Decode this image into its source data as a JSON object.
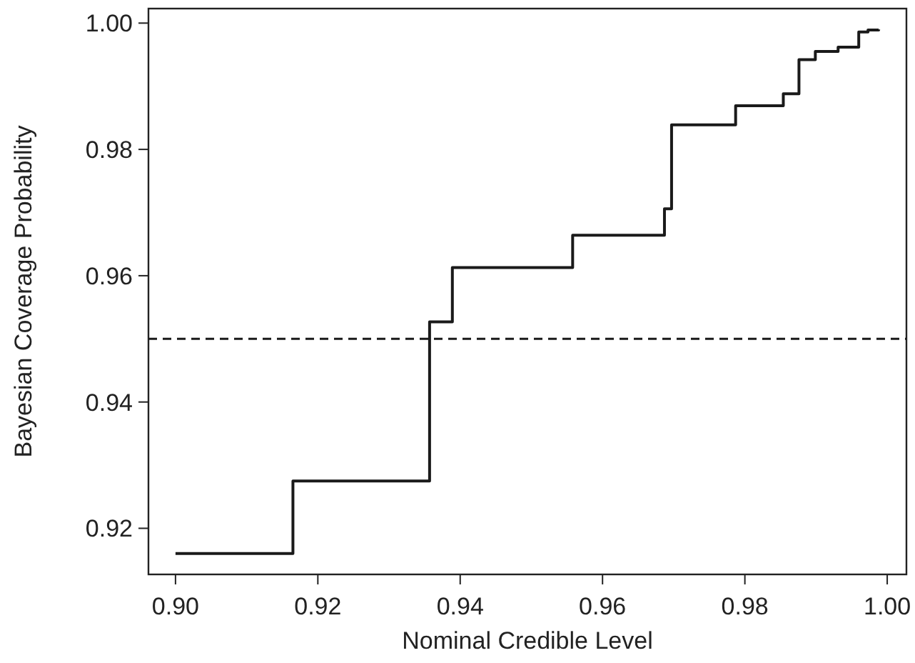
{
  "chart_data": {
    "type": "step",
    "xlabel": "Nominal Credible Level",
    "ylabel": "Bayesian Coverage Probability",
    "x": [
      0.9,
      0.9165,
      0.9357,
      0.9389,
      0.9558,
      0.9687,
      0.9697,
      0.9787,
      0.9854,
      0.9876,
      0.9899,
      0.9931,
      0.996,
      0.9973,
      0.9988
    ],
    "series": [
      {
        "color": "#1a1a1a",
        "values": [
          0.916,
          0.9275,
          0.9527,
          0.9613,
          0.9664,
          0.9706,
          0.9839,
          0.9869,
          0.9888,
          0.9942,
          0.9955,
          0.9962,
          0.9986,
          0.9989,
          0.999
        ]
      }
    ],
    "xlim": [
      0.8962,
      1.0027
    ],
    "ylim": [
      0.9127,
      1.0023
    ],
    "xticks": [
      {
        "value": 0.9,
        "label": "0.90"
      },
      {
        "value": 0.92,
        "label": "0.92"
      },
      {
        "value": 0.94,
        "label": "0.94"
      },
      {
        "value": 0.96,
        "label": "0.96"
      },
      {
        "value": 0.98,
        "label": "0.98"
      },
      {
        "value": 1.0,
        "label": "1.00"
      }
    ],
    "yticks": [
      {
        "value": 0.92,
        "label": "0.92"
      },
      {
        "value": 0.94,
        "label": "0.94"
      },
      {
        "value": 0.96,
        "label": "0.96"
      },
      {
        "value": 0.98,
        "label": "0.98"
      },
      {
        "value": 1.0,
        "label": "1.00"
      }
    ],
    "ref_lines": [
      {
        "axis": "y",
        "value": 0.95,
        "line_style": "dashed",
        "color": "#1a1a1a"
      }
    ],
    "grid": false,
    "marker": "none",
    "line_style": "solid"
  }
}
